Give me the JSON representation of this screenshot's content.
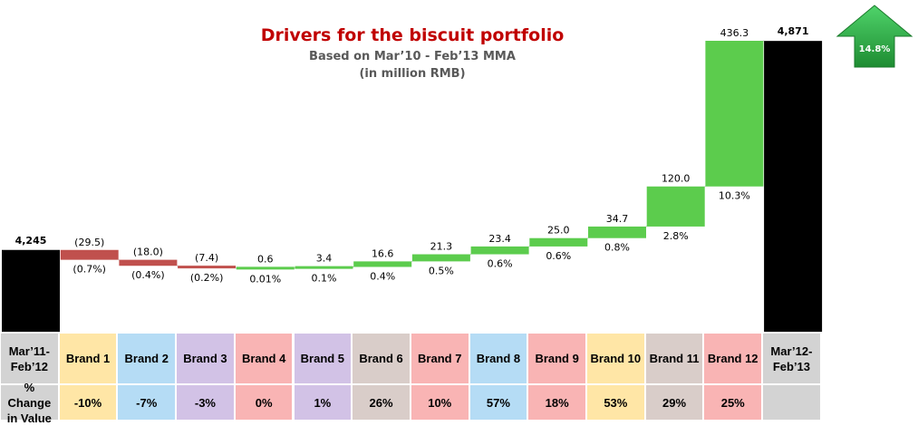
{
  "title": "Drivers for the biscuit portfolio",
  "subtitle_1": "Based on Mar’10 - Feb’13 MMA",
  "subtitle_2": "(in million RMB)",
  "growth_badge": "14.8%",
  "colors": {
    "title": "#c00000",
    "total_bar": "#000000",
    "increase_bar": "#5ccc4d",
    "decrease_bar": "#c0504d",
    "arrow": "#23a33a"
  },
  "chart_data": {
    "type": "bar",
    "subtype": "waterfall",
    "categories": [
      "Mar’11-Feb’12",
      "Brand 1",
      "Brand 2",
      "Brand 3",
      "Brand 4",
      "Brand 5",
      "Brand 6",
      "Brand 7",
      "Brand 8",
      "Brand 9",
      "Brand 10",
      "Brand 11",
      "Brand 12",
      "Mar’12-Feb’13"
    ],
    "start_total": 4245,
    "start_label": "4,245",
    "end_total": 4871,
    "end_label": "4,871",
    "changes": [
      -29.5,
      -18.0,
      -7.4,
      0.6,
      3.4,
      16.6,
      21.3,
      23.4,
      25.0,
      34.7,
      120.0,
      436.3
    ],
    "change_labels": [
      "(29.5)",
      "(18.0)",
      "(7.4)",
      "0.6",
      "3.4",
      "16.6",
      "21.3",
      "23.4",
      "25.0",
      "34.7",
      "120.0",
      "436.3"
    ],
    "contribution_labels": [
      "(0.7%)",
      "(0.4%)",
      "(0.2%)",
      "0.01%",
      "0.1%",
      "0.4%",
      "0.5%",
      "0.6%",
      "0.6%",
      "0.8%",
      "2.8%",
      "10.3%"
    ],
    "baseline": 4000,
    "top": 4885
  },
  "table": {
    "start_header": "Mar’11-\nFeb’12",
    "end_header": "Mar’12-\nFeb’13",
    "row_label": "% Change\nin Value",
    "brands": [
      {
        "name": "Brand 1",
        "change": "-10%",
        "color": "#ffe6a6"
      },
      {
        "name": "Brand 2",
        "change": "-7%",
        "color": "#b5dcf5"
      },
      {
        "name": "Brand 3",
        "change": "-3%",
        "color": "#d2c2e6"
      },
      {
        "name": "Brand 4",
        "change": "0%",
        "color": "#f9b4b4"
      },
      {
        "name": "Brand 5",
        "change": "1%",
        "color": "#d2c2e6"
      },
      {
        "name": "Brand 6",
        "change": "26%",
        "color": "#d9cdc9"
      },
      {
        "name": "Brand 7",
        "change": "10%",
        "color": "#f9b4b4"
      },
      {
        "name": "Brand 8",
        "change": "57%",
        "color": "#b5dcf5"
      },
      {
        "name": "Brand 9",
        "change": "18%",
        "color": "#f9b4b4"
      },
      {
        "name": "Brand 10",
        "change": "53%",
        "color": "#ffe6a6"
      },
      {
        "name": "Brand 11",
        "change": "29%",
        "color": "#d9cdc9"
      },
      {
        "name": "Brand 12",
        "change": "25%",
        "color": "#f9b4b4"
      }
    ],
    "edge_color": "#d3d3d3"
  }
}
